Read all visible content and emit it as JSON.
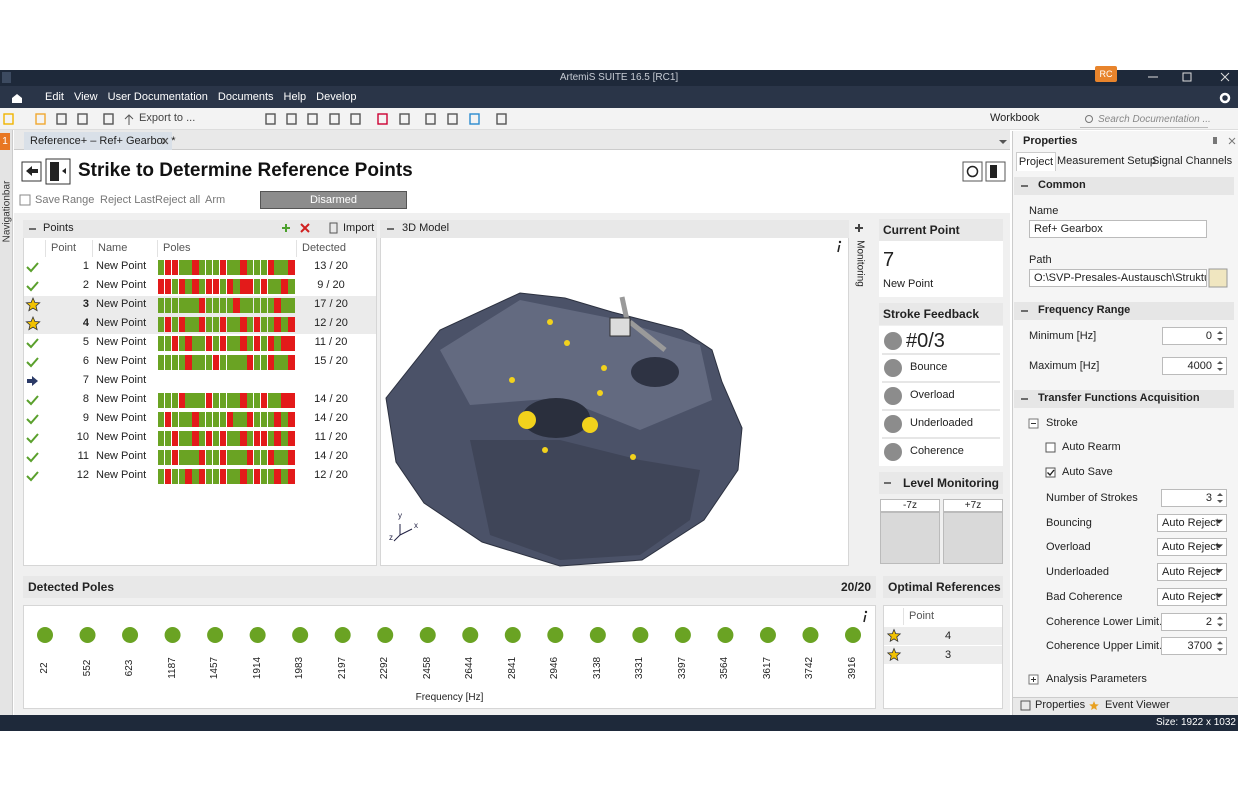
{
  "window": {
    "title": "ArtemiS SUITE 16.5 [RC1]",
    "user": "RC"
  },
  "menu": [
    "Edit",
    "View",
    "User Documentation",
    "Documents",
    "Help",
    "Develop"
  ],
  "toolbar": {
    "export": "Export to ...",
    "workbook": "Workbook",
    "search": "Search Documentation ..."
  },
  "sidebar": {
    "number": "1",
    "label": "Navigationbar"
  },
  "tab": "Reference+ – Ref+ Gearbox *",
  "header": {
    "title": "Strike to Determine Reference Points",
    "actions": [
      "Save",
      "Range",
      "Reject Last",
      "Reject all",
      "Arm"
    ],
    "state": "Disarmed"
  },
  "points": {
    "title": "Points",
    "import": "Import",
    "columns": [
      "Point",
      "Name",
      "Poles",
      "Detected"
    ],
    "rows": [
      {
        "point": 1,
        "name": "New Point",
        "status": "done",
        "poles": [
          1,
          0,
          0,
          1,
          1,
          0,
          1,
          1,
          1,
          0,
          1,
          1,
          0,
          1,
          1,
          1,
          0,
          1,
          1,
          0
        ],
        "detected": "13 / 20"
      },
      {
        "point": 2,
        "name": "New Point",
        "status": "done",
        "poles": [
          0,
          0,
          1,
          0,
          1,
          0,
          1,
          0,
          0,
          1,
          0,
          1,
          0,
          0,
          1,
          0,
          1,
          1,
          0,
          1
        ],
        "detected": "9 / 20"
      },
      {
        "point": 3,
        "name": "New Point",
        "status": "reference",
        "poles": [
          1,
          1,
          1,
          1,
          1,
          1,
          0,
          1,
          1,
          1,
          1,
          0,
          1,
          1,
          1,
          1,
          1,
          0,
          1,
          1
        ],
        "detected": "17 / 20"
      },
      {
        "point": 4,
        "name": "New Point",
        "status": "reference",
        "poles": [
          1,
          0,
          1,
          0,
          1,
          1,
          0,
          1,
          1,
          0,
          1,
          1,
          0,
          1,
          0,
          1,
          1,
          0,
          1,
          0
        ],
        "detected": "12 / 20"
      },
      {
        "point": 5,
        "name": "New Point",
        "status": "done",
        "poles": [
          1,
          1,
          0,
          1,
          0,
          1,
          1,
          0,
          1,
          0,
          1,
          1,
          0,
          1,
          0,
          1,
          0,
          1,
          0,
          0
        ],
        "detected": "11 / 20"
      },
      {
        "point": 6,
        "name": "New Point",
        "status": "done",
        "poles": [
          1,
          1,
          1,
          1,
          0,
          1,
          1,
          1,
          0,
          1,
          1,
          1,
          1,
          0,
          1,
          1,
          0,
          1,
          1,
          0
        ],
        "detected": "15 / 20"
      },
      {
        "point": 7,
        "name": "New Point",
        "status": "current"
      },
      {
        "point": 8,
        "name": "New Point",
        "status": "done",
        "poles": [
          1,
          1,
          1,
          0,
          1,
          1,
          1,
          0,
          1,
          1,
          1,
          1,
          0,
          1,
          1,
          0,
          1,
          1,
          0,
          0
        ],
        "detected": "14 / 20"
      },
      {
        "point": 9,
        "name": "New Point",
        "status": "done",
        "poles": [
          1,
          0,
          1,
          1,
          1,
          0,
          1,
          1,
          1,
          1,
          0,
          1,
          1,
          0,
          1,
          1,
          1,
          0,
          1,
          0
        ],
        "detected": "14 / 20"
      },
      {
        "point": 10,
        "name": "New Point",
        "status": "done",
        "poles": [
          1,
          1,
          0,
          1,
          1,
          0,
          1,
          0,
          1,
          0,
          1,
          1,
          0,
          1,
          0,
          0,
          1,
          0,
          1,
          0
        ],
        "detected": "11 / 20"
      },
      {
        "point": 11,
        "name": "New Point",
        "status": "done",
        "poles": [
          1,
          1,
          0,
          1,
          1,
          1,
          0,
          1,
          1,
          0,
          1,
          1,
          1,
          0,
          1,
          1,
          0,
          1,
          1,
          0
        ],
        "detected": "14 / 20"
      },
      {
        "point": 12,
        "name": "New Point",
        "status": "done",
        "poles": [
          1,
          0,
          1,
          1,
          0,
          1,
          0,
          1,
          1,
          0,
          1,
          1,
          0,
          1,
          0,
          1,
          1,
          0,
          1,
          0
        ],
        "detected": "12 / 20"
      }
    ]
  },
  "model": {
    "title": "3D Model",
    "axes": [
      "x",
      "y",
      "z"
    ]
  },
  "monitoring": "Monitoring",
  "current_point": {
    "title": "Current Point",
    "number": 7,
    "name": "New Point"
  },
  "stroke_feedback": {
    "title": "Stroke Feedback",
    "count": "#0/3",
    "items": [
      "Bounce",
      "Overload",
      "Underloaded",
      "Coherence"
    ]
  },
  "level_monitoring": {
    "title": "Level Monitoring",
    "channels": [
      "-7z",
      "+7z"
    ]
  },
  "detected_poles": {
    "title": "Detected Poles",
    "count": "20/20",
    "frequencies": [
      22,
      552,
      623,
      1187,
      1457,
      1914,
      1983,
      2197,
      2292,
      2458,
      2644,
      2841,
      2946,
      3138,
      3331,
      3397,
      3564,
      3617,
      3742,
      3916
    ],
    "axis_label": "Frequency [Hz]"
  },
  "optimal_references": {
    "title": "Optimal References",
    "column": "Point",
    "rows": [
      4,
      3
    ]
  },
  "properties": {
    "title": "Properties",
    "tabs": [
      "Project",
      "Measurement Setup",
      "Signal Channels"
    ],
    "common": {
      "title": "Common",
      "name_label": "Name",
      "name": "Ref+ Gearbox",
      "path_label": "Path",
      "path": "O:\\SVP-Presales-Austausch\\Strukturdyna"
    },
    "frequency_range": {
      "title": "Frequency Range",
      "fields": [
        {
          "label": "Minimum [Hz]",
          "value": 0
        },
        {
          "label": "Maximum [Hz]",
          "value": 4000
        }
      ]
    },
    "transfer": {
      "title": "Transfer Functions Acquisition",
      "group": "Stroke",
      "checks": [
        {
          "label": "Auto Rearm",
          "checked": false
        },
        {
          "label": "Auto Save",
          "checked": true
        }
      ],
      "fields": [
        {
          "label": "Number of Strokes",
          "value": 3
        },
        {
          "label": "Bouncing",
          "value": "Auto Reject"
        },
        {
          "label": "Overload",
          "value": "Auto Reject"
        },
        {
          "label": "Underloaded",
          "value": "Auto Reject"
        },
        {
          "label": "Bad Coherence",
          "value": "Auto Reject"
        },
        {
          "label": "Coherence Lower Limit...",
          "value": 2
        },
        {
          "label": "Coherence Upper Limit...",
          "value": 3700
        }
      ]
    },
    "analysis": "Analysis Parameters",
    "bottom_tabs": [
      "Properties",
      "Event Viewer"
    ]
  },
  "status_bar": "Size: 1922 x 1032"
}
